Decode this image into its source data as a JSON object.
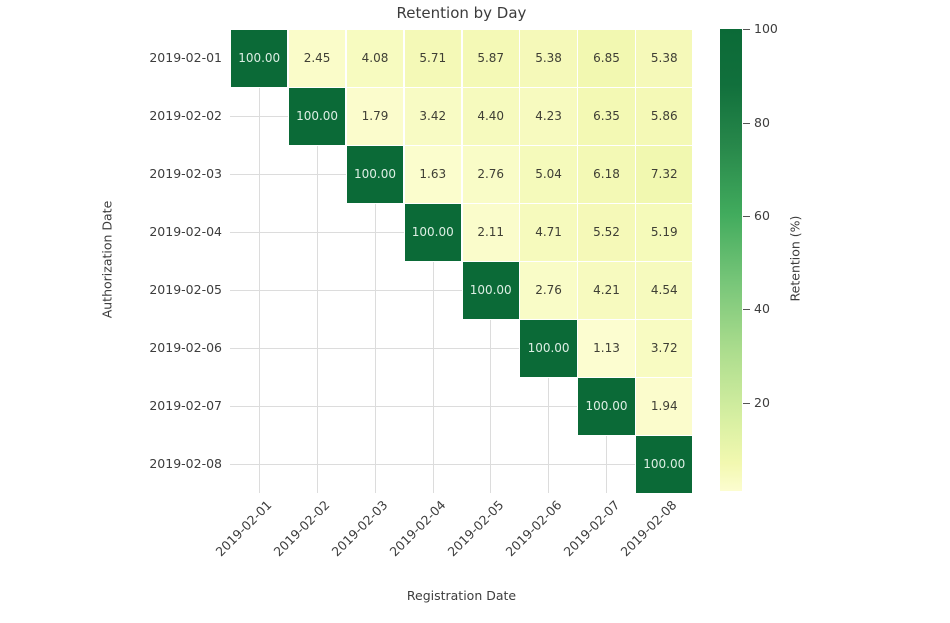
{
  "chart_data": {
    "type": "heatmap",
    "title": "Retention by Day",
    "xlabel": "Registration Date",
    "ylabel": "Authorization Date",
    "colorbar_label": "Retention (%)",
    "x_categories": [
      "2019-02-01",
      "2019-02-02",
      "2019-02-03",
      "2019-02-04",
      "2019-02-05",
      "2019-02-06",
      "2019-02-07",
      "2019-02-08"
    ],
    "y_categories": [
      "2019-02-01",
      "2019-02-02",
      "2019-02-03",
      "2019-02-04",
      "2019-02-05",
      "2019-02-06",
      "2019-02-07",
      "2019-02-08"
    ],
    "matrix": [
      [
        100.0,
        2.45,
        4.08,
        5.71,
        5.87,
        5.38,
        6.85,
        5.38
      ],
      [
        null,
        100.0,
        1.79,
        3.42,
        4.4,
        4.23,
        6.35,
        5.86
      ],
      [
        null,
        null,
        100.0,
        1.63,
        2.76,
        5.04,
        6.18,
        7.32
      ],
      [
        null,
        null,
        null,
        100.0,
        2.11,
        4.71,
        5.52,
        5.19
      ],
      [
        null,
        null,
        null,
        null,
        100.0,
        2.76,
        4.21,
        4.54
      ],
      [
        null,
        null,
        null,
        null,
        null,
        100.0,
        1.13,
        3.72
      ],
      [
        null,
        null,
        null,
        null,
        null,
        null,
        100.0,
        1.94
      ],
      [
        null,
        null,
        null,
        null,
        null,
        null,
        null,
        100.0
      ]
    ],
    "value_format_decimals": 2,
    "vmin": 1.13,
    "vmax": 100,
    "colorbar_ticks": [
      100,
      80,
      60,
      40,
      20
    ],
    "grid_on": true,
    "colors": {
      "colormap_stops": [
        {
          "t": 0.0,
          "color": "#fcfdd0"
        },
        {
          "t": 0.06,
          "color": "#f2f8b0"
        },
        {
          "t": 0.15,
          "color": "#d9f0a3"
        },
        {
          "t": 0.3,
          "color": "#addd8e"
        },
        {
          "t": 0.45,
          "color": "#78c679"
        },
        {
          "t": 0.6,
          "color": "#41ab5d"
        },
        {
          "t": 0.75,
          "color": "#27874a"
        },
        {
          "t": 0.88,
          "color": "#11703c"
        },
        {
          "t": 1.0,
          "color": "#0b6a37"
        }
      ],
      "annotation_dark": "#3f3f35",
      "annotation_light": "#ddeee4",
      "gridline": "#dcdcdc",
      "text": "#3d3d3d"
    },
    "light_text_threshold": 50
  }
}
